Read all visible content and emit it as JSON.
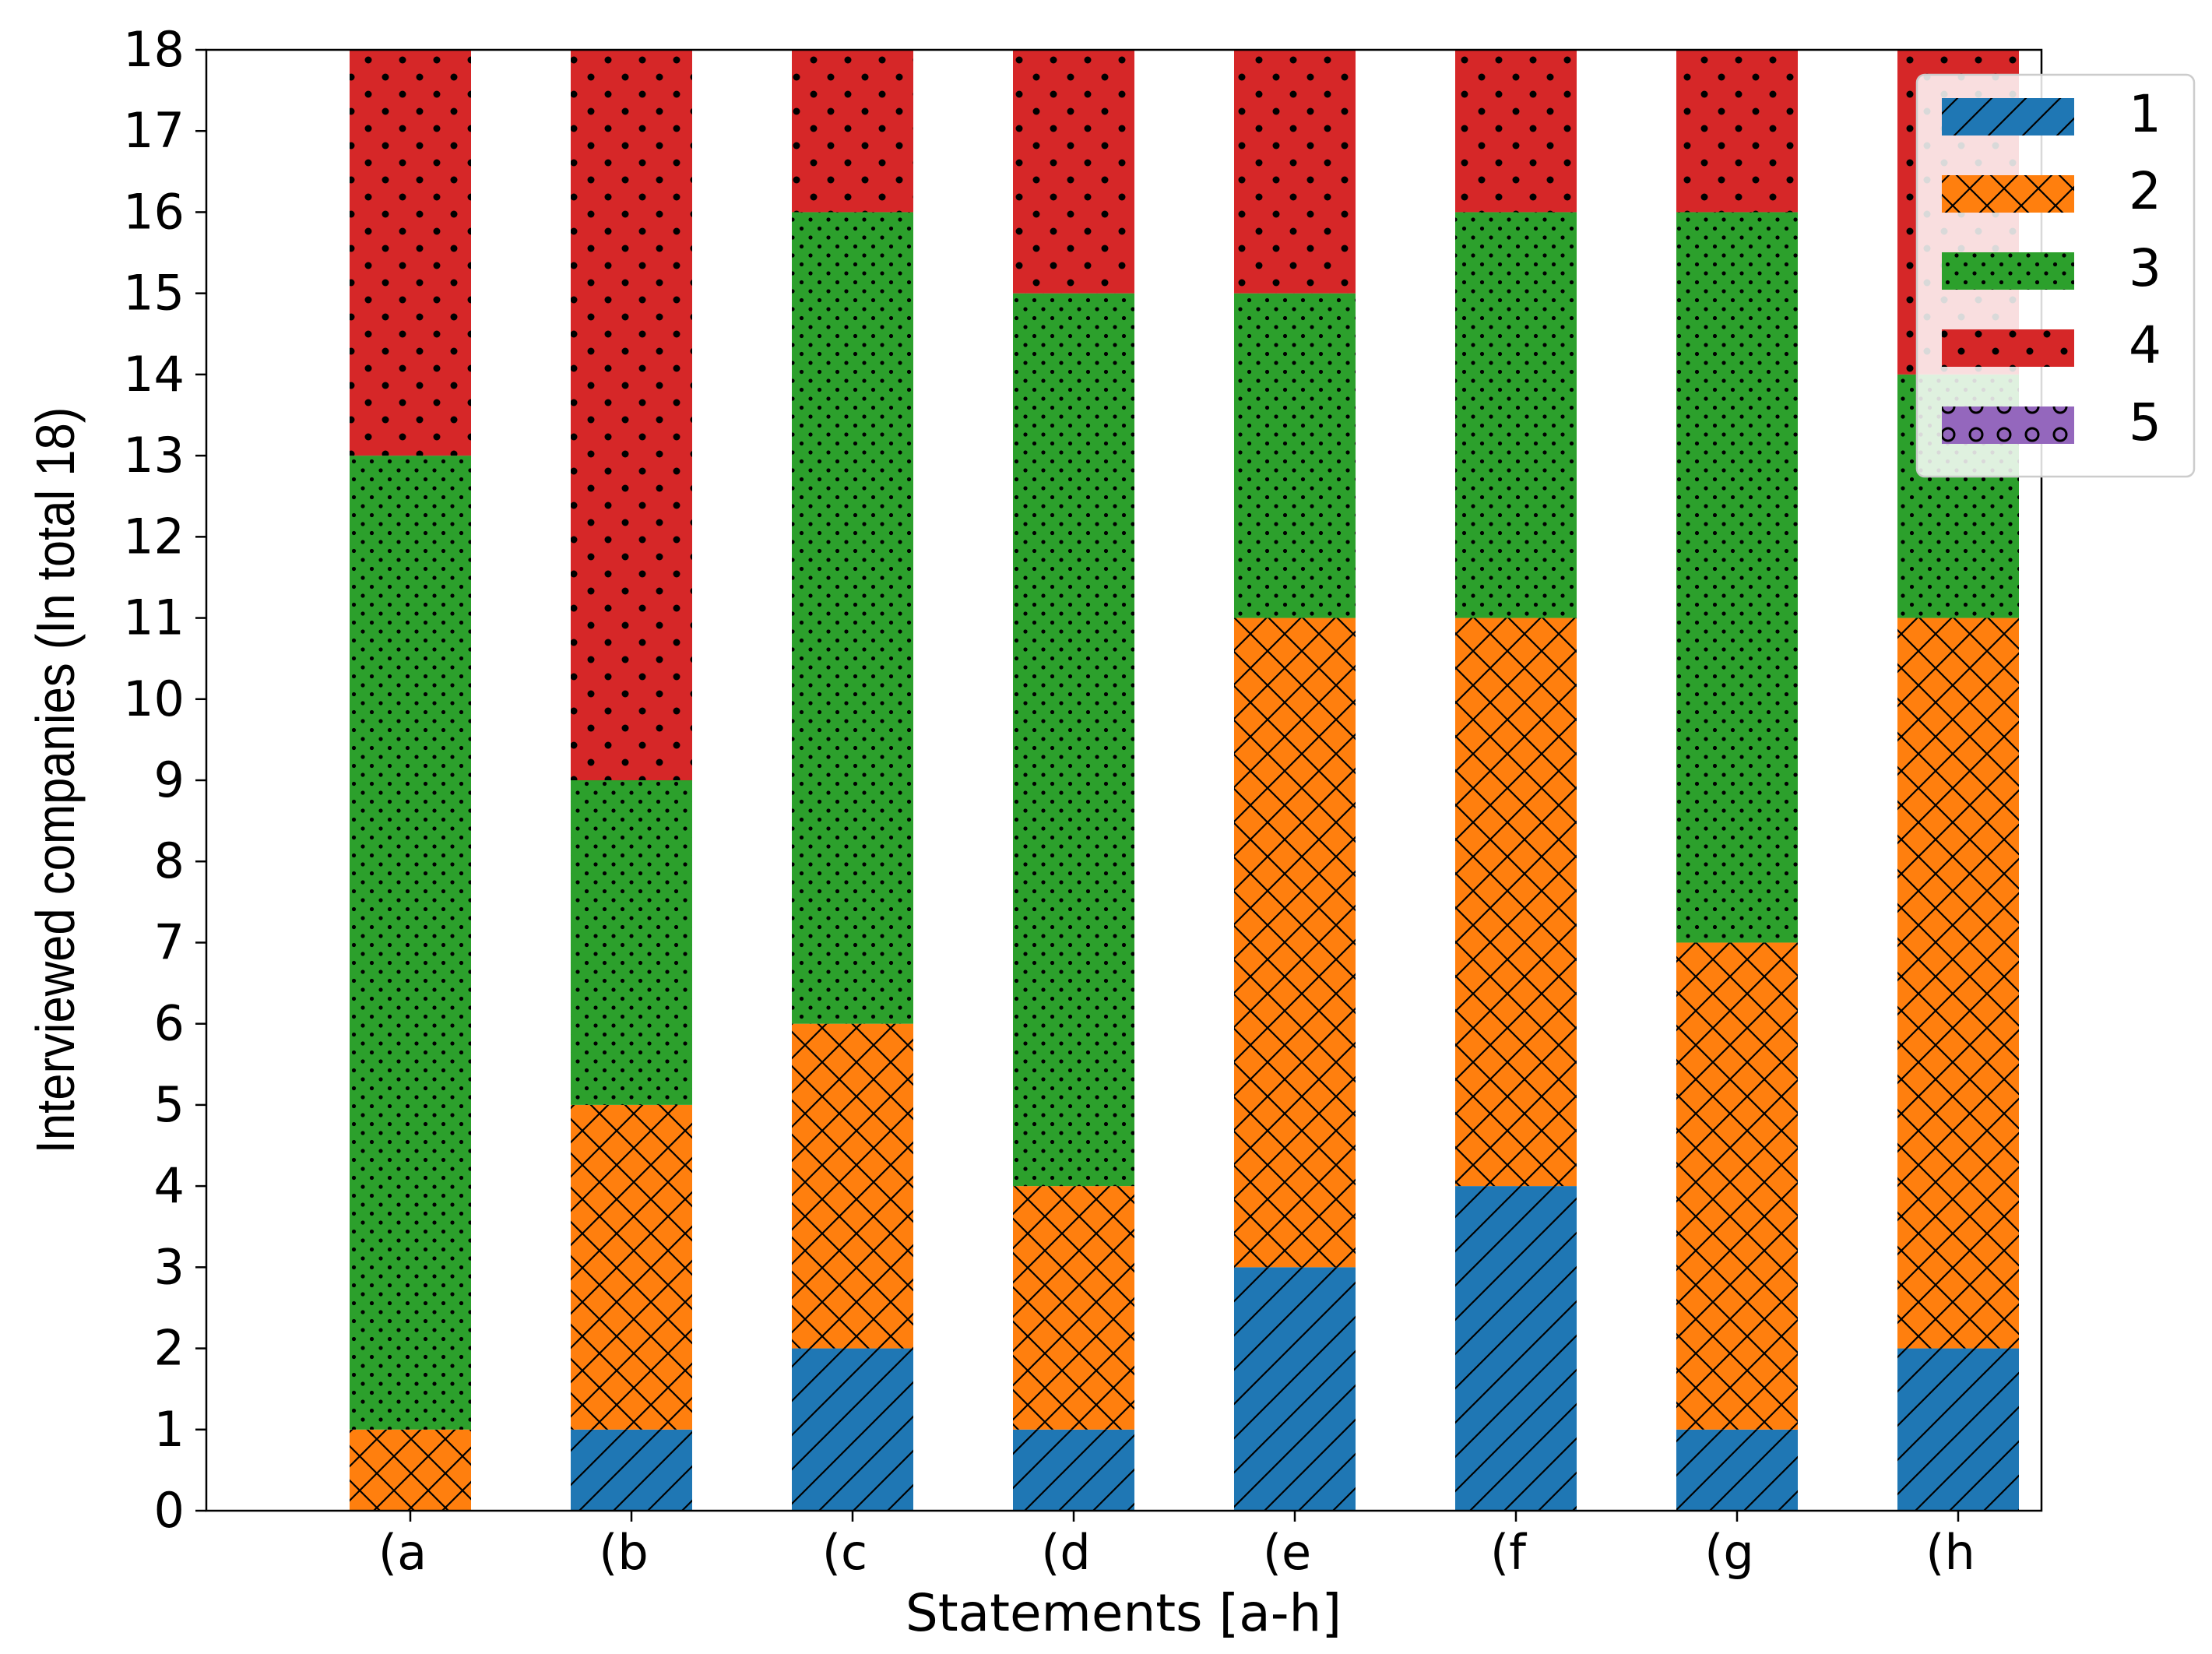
{
  "chart_data": {
    "type": "bar",
    "stacked": true,
    "title": "",
    "xlabel": "Statements [a-h]",
    "ylabel": "Interviewed companies (In total 18)",
    "ylim": [
      0,
      18
    ],
    "yticks": [
      0,
      1,
      2,
      3,
      4,
      5,
      6,
      7,
      8,
      9,
      10,
      11,
      12,
      13,
      14,
      15,
      16,
      17,
      18
    ],
    "categories": [
      "(a",
      "(b",
      "(c",
      "(d",
      "(e",
      "(f",
      "(g",
      "(h"
    ],
    "series": [
      {
        "name": "1",
        "color": "#1f77b4",
        "hatch": "diagonal",
        "values": [
          0,
          1,
          2,
          1,
          3,
          4,
          1,
          2
        ]
      },
      {
        "name": "2",
        "color": "#ff7f0e",
        "hatch": "crosshatch",
        "values": [
          1,
          4,
          4,
          3,
          8,
          7,
          6,
          9
        ]
      },
      {
        "name": "3",
        "color": "#2ca02c",
        "hatch": "small-dots",
        "values": [
          12,
          4,
          10,
          11,
          4,
          5,
          9,
          3
        ]
      },
      {
        "name": "4",
        "color": "#d62728",
        "hatch": "dots",
        "values": [
          5,
          9,
          2,
          3,
          3,
          2,
          2,
          4
        ]
      },
      {
        "name": "5",
        "color": "#9467bd",
        "hatch": "circles",
        "values": [
          0,
          0,
          0,
          0,
          0,
          0,
          0,
          0
        ]
      }
    ],
    "legend_position": "top-right",
    "grid": false
  }
}
